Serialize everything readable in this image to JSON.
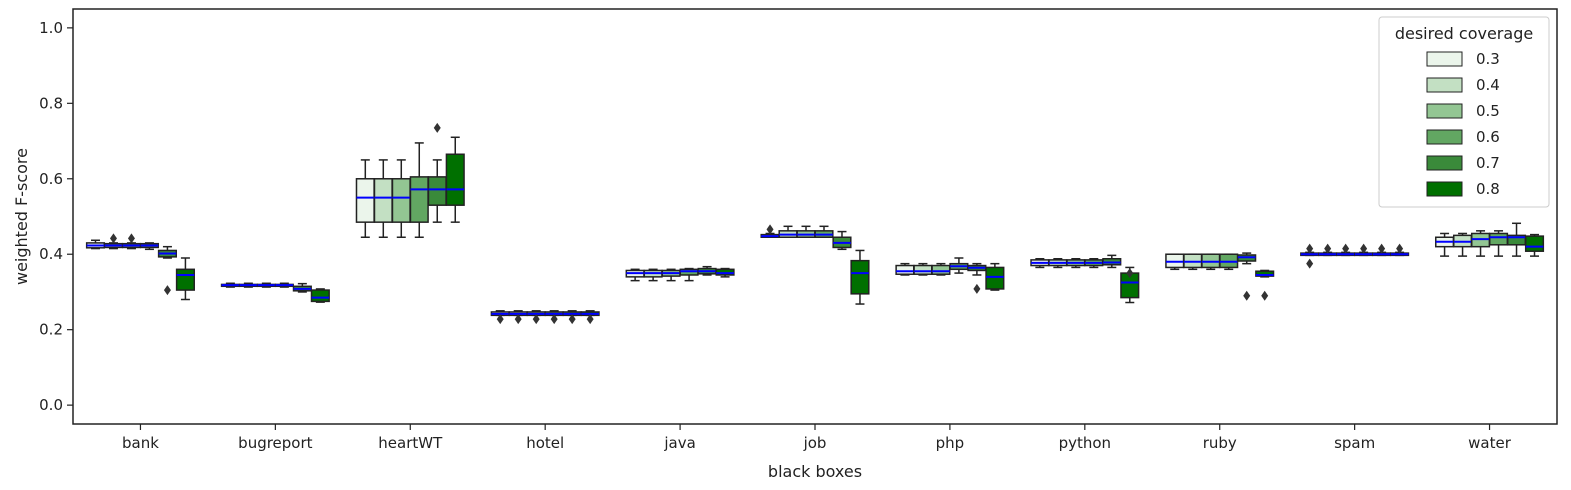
{
  "chart_data": {
    "type": "box",
    "xlabel": "black boxes",
    "ylabel": "weighted F-score",
    "ylim": [
      -0.05,
      1.05
    ],
    "yticks": [
      0.0,
      0.2,
      0.4,
      0.6,
      0.8,
      1.0
    ],
    "ytick_labels": [
      "0.0",
      "0.2",
      "0.4",
      "0.6",
      "0.8",
      "1.0"
    ],
    "categories": [
      "bank",
      "bugreport",
      "heartWT",
      "hotel",
      "java",
      "job",
      "php",
      "python",
      "ruby",
      "spam",
      "water"
    ],
    "legend": {
      "title": "desired coverage",
      "placement": "top-right",
      "labels": [
        "0.3",
        "0.4",
        "0.5",
        "0.6",
        "0.7",
        "0.8"
      ]
    },
    "series_colors": [
      "#ebf5eb",
      "#c3e0c3",
      "#93c693",
      "#62a762",
      "#3a8a3a",
      "#007000"
    ],
    "median_color": "#0000ff",
    "grid": false,
    "series": [
      {
        "name": "0.3",
        "boxes": [
          {
            "whislo": 0.415,
            "q1": 0.417,
            "med": 0.423,
            "q3": 0.43,
            "whishi": 0.437,
            "fliers": []
          },
          {
            "whislo": 0.313,
            "q1": 0.315,
            "med": 0.318,
            "q3": 0.32,
            "whishi": 0.323,
            "fliers": []
          },
          {
            "whislo": 0.445,
            "q1": 0.485,
            "med": 0.55,
            "q3": 0.6,
            "whishi": 0.65,
            "fliers": []
          },
          {
            "whislo": 0.238,
            "q1": 0.238,
            "med": 0.242,
            "q3": 0.247,
            "whishi": 0.25,
            "fliers": [
              0.228
            ]
          },
          {
            "whislo": 0.33,
            "q1": 0.34,
            "med": 0.35,
            "q3": 0.357,
            "whishi": 0.36,
            "fliers": []
          },
          {
            "whislo": 0.445,
            "q1": 0.445,
            "med": 0.448,
            "q3": 0.452,
            "whishi": 0.455,
            "fliers": [
              0.466
            ]
          },
          {
            "whislo": 0.345,
            "q1": 0.347,
            "med": 0.355,
            "q3": 0.37,
            "whishi": 0.375,
            "fliers": []
          },
          {
            "whislo": 0.365,
            "q1": 0.37,
            "med": 0.377,
            "q3": 0.385,
            "whishi": 0.388,
            "fliers": []
          },
          {
            "whislo": 0.36,
            "q1": 0.365,
            "med": 0.38,
            "q3": 0.4,
            "whishi": 0.4,
            "fliers": []
          },
          {
            "whislo": 0.397,
            "q1": 0.397,
            "med": 0.4,
            "q3": 0.403,
            "whishi": 0.405,
            "fliers": [
              0.375,
              0.415
            ]
          },
          {
            "whislo": 0.395,
            "q1": 0.42,
            "med": 0.433,
            "q3": 0.445,
            "whishi": 0.455,
            "fliers": []
          }
        ]
      },
      {
        "name": "0.4",
        "boxes": [
          {
            "whislo": 0.415,
            "q1": 0.418,
            "med": 0.423,
            "q3": 0.428,
            "whishi": 0.43,
            "fliers": [
              0.442
            ]
          },
          {
            "whislo": 0.313,
            "q1": 0.315,
            "med": 0.318,
            "q3": 0.32,
            "whishi": 0.323,
            "fliers": []
          },
          {
            "whislo": 0.445,
            "q1": 0.485,
            "med": 0.55,
            "q3": 0.6,
            "whishi": 0.65,
            "fliers": []
          },
          {
            "whislo": 0.238,
            "q1": 0.238,
            "med": 0.242,
            "q3": 0.247,
            "whishi": 0.25,
            "fliers": [
              0.228
            ]
          },
          {
            "whislo": 0.33,
            "q1": 0.34,
            "med": 0.35,
            "q3": 0.357,
            "whishi": 0.36,
            "fliers": []
          },
          {
            "whislo": 0.445,
            "q1": 0.445,
            "med": 0.452,
            "q3": 0.462,
            "whishi": 0.474,
            "fliers": []
          },
          {
            "whislo": 0.345,
            "q1": 0.347,
            "med": 0.355,
            "q3": 0.37,
            "whishi": 0.375,
            "fliers": []
          },
          {
            "whislo": 0.365,
            "q1": 0.37,
            "med": 0.377,
            "q3": 0.385,
            "whishi": 0.388,
            "fliers": []
          },
          {
            "whislo": 0.36,
            "q1": 0.365,
            "med": 0.38,
            "q3": 0.4,
            "whishi": 0.4,
            "fliers": []
          },
          {
            "whislo": 0.397,
            "q1": 0.397,
            "med": 0.4,
            "q3": 0.403,
            "whishi": 0.405,
            "fliers": [
              0.415
            ]
          },
          {
            "whislo": 0.395,
            "q1": 0.42,
            "med": 0.433,
            "q3": 0.45,
            "whishi": 0.455,
            "fliers": []
          }
        ]
      },
      {
        "name": "0.5",
        "boxes": [
          {
            "whislo": 0.415,
            "q1": 0.418,
            "med": 0.423,
            "q3": 0.428,
            "whishi": 0.43,
            "fliers": [
              0.442
            ]
          },
          {
            "whislo": 0.313,
            "q1": 0.315,
            "med": 0.318,
            "q3": 0.32,
            "whishi": 0.323,
            "fliers": []
          },
          {
            "whislo": 0.445,
            "q1": 0.485,
            "med": 0.55,
            "q3": 0.6,
            "whishi": 0.65,
            "fliers": []
          },
          {
            "whislo": 0.238,
            "q1": 0.238,
            "med": 0.242,
            "q3": 0.247,
            "whishi": 0.25,
            "fliers": [
              0.228
            ]
          },
          {
            "whislo": 0.33,
            "q1": 0.342,
            "med": 0.35,
            "q3": 0.357,
            "whishi": 0.36,
            "fliers": []
          },
          {
            "whislo": 0.445,
            "q1": 0.445,
            "med": 0.452,
            "q3": 0.462,
            "whishi": 0.474,
            "fliers": []
          },
          {
            "whislo": 0.345,
            "q1": 0.347,
            "med": 0.355,
            "q3": 0.37,
            "whishi": 0.375,
            "fliers": []
          },
          {
            "whislo": 0.365,
            "q1": 0.37,
            "med": 0.377,
            "q3": 0.385,
            "whishi": 0.388,
            "fliers": []
          },
          {
            "whislo": 0.36,
            "q1": 0.365,
            "med": 0.38,
            "q3": 0.4,
            "whishi": 0.4,
            "fliers": []
          },
          {
            "whislo": 0.397,
            "q1": 0.397,
            "med": 0.4,
            "q3": 0.403,
            "whishi": 0.405,
            "fliers": [
              0.415
            ]
          },
          {
            "whislo": 0.395,
            "q1": 0.42,
            "med": 0.44,
            "q3": 0.455,
            "whishi": 0.462,
            "fliers": []
          }
        ]
      },
      {
        "name": "0.6",
        "boxes": [
          {
            "whislo": 0.413,
            "q1": 0.418,
            "med": 0.423,
            "q3": 0.428,
            "whishi": 0.43,
            "fliers": []
          },
          {
            "whislo": 0.313,
            "q1": 0.315,
            "med": 0.318,
            "q3": 0.32,
            "whishi": 0.323,
            "fliers": []
          },
          {
            "whislo": 0.445,
            "q1": 0.485,
            "med": 0.572,
            "q3": 0.605,
            "whishi": 0.695,
            "fliers": []
          },
          {
            "whislo": 0.238,
            "q1": 0.238,
            "med": 0.242,
            "q3": 0.247,
            "whishi": 0.25,
            "fliers": [
              0.228
            ]
          },
          {
            "whislo": 0.33,
            "q1": 0.345,
            "med": 0.355,
            "q3": 0.36,
            "whishi": 0.362,
            "fliers": []
          },
          {
            "whislo": 0.445,
            "q1": 0.445,
            "med": 0.452,
            "q3": 0.462,
            "whishi": 0.474,
            "fliers": []
          },
          {
            "whislo": 0.35,
            "q1": 0.36,
            "med": 0.368,
            "q3": 0.375,
            "whishi": 0.39,
            "fliers": []
          },
          {
            "whislo": 0.365,
            "q1": 0.37,
            "med": 0.377,
            "q3": 0.385,
            "whishi": 0.388,
            "fliers": []
          },
          {
            "whislo": 0.36,
            "q1": 0.365,
            "med": 0.38,
            "q3": 0.4,
            "whishi": 0.4,
            "fliers": []
          },
          {
            "whislo": 0.397,
            "q1": 0.397,
            "med": 0.4,
            "q3": 0.403,
            "whishi": 0.405,
            "fliers": [
              0.415
            ]
          },
          {
            "whislo": 0.395,
            "q1": 0.425,
            "med": 0.445,
            "q3": 0.455,
            "whishi": 0.462,
            "fliers": []
          }
        ]
      },
      {
        "name": "0.7",
        "boxes": [
          {
            "whislo": 0.39,
            "q1": 0.393,
            "med": 0.402,
            "q3": 0.41,
            "whishi": 0.42,
            "fliers": [
              0.305
            ]
          },
          {
            "whislo": 0.3,
            "q1": 0.303,
            "med": 0.308,
            "q3": 0.315,
            "whishi": 0.322,
            "fliers": []
          },
          {
            "whislo": 0.485,
            "q1": 0.53,
            "med": 0.572,
            "q3": 0.605,
            "whishi": 0.65,
            "fliers": [
              0.735
            ]
          },
          {
            "whislo": 0.238,
            "q1": 0.238,
            "med": 0.242,
            "q3": 0.247,
            "whishi": 0.25,
            "fliers": [
              0.228
            ]
          },
          {
            "whislo": 0.345,
            "q1": 0.348,
            "med": 0.355,
            "q3": 0.362,
            "whishi": 0.367,
            "fliers": []
          },
          {
            "whislo": 0.413,
            "q1": 0.418,
            "med": 0.43,
            "q3": 0.445,
            "whishi": 0.46,
            "fliers": []
          },
          {
            "whislo": 0.345,
            "q1": 0.357,
            "med": 0.364,
            "q3": 0.37,
            "whishi": 0.375,
            "fliers": [
              0.308
            ]
          },
          {
            "whislo": 0.365,
            "q1": 0.372,
            "med": 0.378,
            "q3": 0.388,
            "whishi": 0.397,
            "fliers": []
          },
          {
            "whislo": 0.375,
            "q1": 0.382,
            "med": 0.392,
            "q3": 0.398,
            "whishi": 0.403,
            "fliers": [
              0.29
            ]
          },
          {
            "whislo": 0.397,
            "q1": 0.397,
            "med": 0.4,
            "q3": 0.403,
            "whishi": 0.405,
            "fliers": [
              0.415
            ]
          },
          {
            "whislo": 0.395,
            "q1": 0.425,
            "med": 0.445,
            "q3": 0.45,
            "whishi": 0.482,
            "fliers": []
          }
        ]
      },
      {
        "name": "0.8",
        "boxes": [
          {
            "whislo": 0.28,
            "q1": 0.305,
            "med": 0.345,
            "q3": 0.36,
            "whishi": 0.39,
            "fliers": []
          },
          {
            "whislo": 0.273,
            "q1": 0.275,
            "med": 0.285,
            "q3": 0.305,
            "whishi": 0.308,
            "fliers": []
          },
          {
            "whislo": 0.485,
            "q1": 0.53,
            "med": 0.572,
            "q3": 0.665,
            "whishi": 0.71,
            "fliers": []
          },
          {
            "whislo": 0.238,
            "q1": 0.238,
            "med": 0.242,
            "q3": 0.247,
            "whishi": 0.25,
            "fliers": [
              0.228
            ]
          },
          {
            "whislo": 0.34,
            "q1": 0.345,
            "med": 0.35,
            "q3": 0.36,
            "whishi": 0.362,
            "fliers": []
          },
          {
            "whislo": 0.268,
            "q1": 0.295,
            "med": 0.35,
            "q3": 0.383,
            "whishi": 0.41,
            "fliers": []
          },
          {
            "whislo": 0.305,
            "q1": 0.308,
            "med": 0.34,
            "q3": 0.365,
            "whishi": 0.375,
            "fliers": []
          },
          {
            "whislo": 0.272,
            "q1": 0.285,
            "med": 0.325,
            "q3": 0.35,
            "whishi": 0.365,
            "fliers": [
              0.35
            ]
          },
          {
            "whislo": 0.34,
            "q1": 0.342,
            "med": 0.345,
            "q3": 0.355,
            "whishi": 0.357,
            "fliers": [
              0.29
            ]
          },
          {
            "whislo": 0.397,
            "q1": 0.397,
            "med": 0.4,
            "q3": 0.403,
            "whishi": 0.405,
            "fliers": [
              0.415
            ]
          },
          {
            "whislo": 0.395,
            "q1": 0.408,
            "med": 0.42,
            "q3": 0.448,
            "whishi": 0.452,
            "fliers": []
          }
        ]
      }
    ]
  }
}
